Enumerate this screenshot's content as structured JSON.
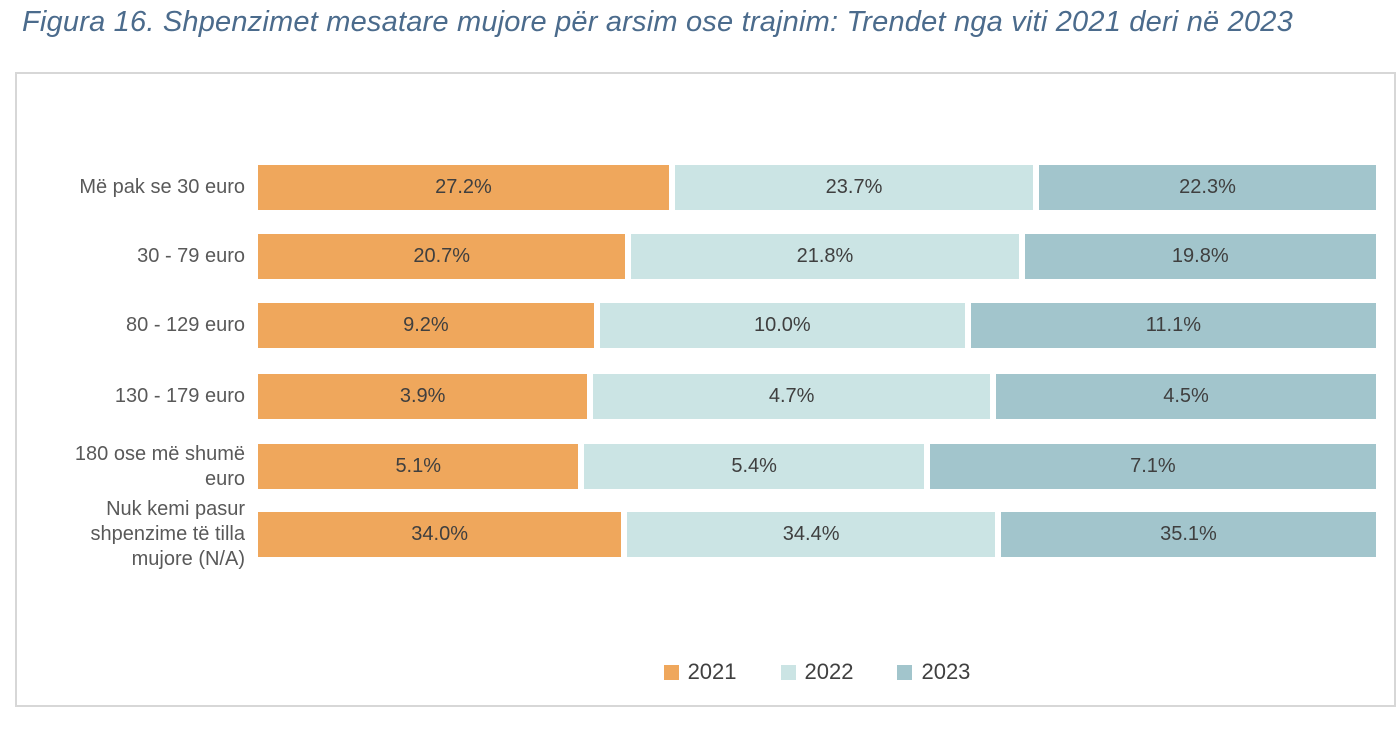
{
  "title": "Figura 16. Shpenzimet mesatare mujore për arsim ose trajnim: Trendet nga viti 2021 deri në 2023",
  "colors": {
    "series_2021": "#EFA75C",
    "series_2022": "#CBE4E4",
    "series_2023": "#A2C5CC",
    "title_text": "#4B6B8C",
    "category_text": "#595959",
    "value_text": "#3F3F3F",
    "legend_text": "#404040",
    "box_border": "#D7D7D7"
  },
  "chart_data": {
    "type": "bar",
    "orientation": "horizontal",
    "stacked": true,
    "normalized_to_full_width": true,
    "grid": false,
    "legend_position": "bottom-center",
    "title": "Figura 16. Shpenzimet mesatare mujore për arsim ose trajnim: Trendet nga viti 2021 deri në 2023",
    "value_suffix": "%",
    "categories": [
      "Më pak se 30 euro",
      "30 - 79 euro",
      "80 - 129 euro",
      "130 - 179 euro",
      "180 ose më shumë\neuro",
      "Nuk kemi pasur\nshpenzime të tilla\nmujore (N/A)"
    ],
    "series": [
      {
        "name": "2021",
        "color": "#EFA75C",
        "values": [
          27.2,
          20.7,
          9.2,
          3.9,
          5.1,
          34.0
        ]
      },
      {
        "name": "2022",
        "color": "#CBE4E4",
        "values": [
          23.7,
          21.8,
          10.0,
          4.7,
          5.4,
          34.4
        ]
      },
      {
        "name": "2023",
        "color": "#A2C5CC",
        "values": [
          22.3,
          19.8,
          11.1,
          4.5,
          7.1,
          35.1
        ]
      }
    ]
  }
}
